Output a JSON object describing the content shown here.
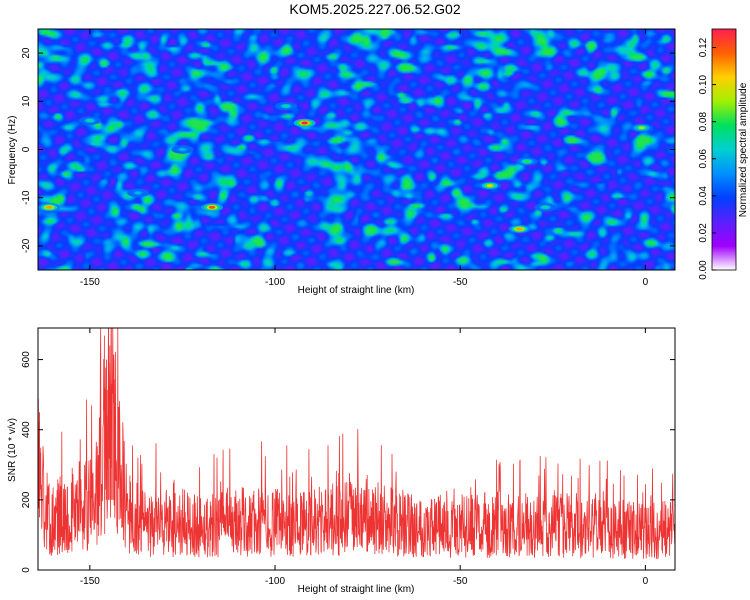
{
  "title": "KOM5.2025.227.06.52.G02",
  "chart_data": [
    {
      "type": "heatmap",
      "title": "KOM5.2025.227.06.52.G02",
      "xlabel": "Height of straight line (km)",
      "ylabel": "Frequency (Hz)",
      "xlim": [
        -164,
        8
      ],
      "ylim": [
        -25,
        25
      ],
      "xticks": [
        -150,
        -100,
        -50,
        0
      ],
      "yticks": [
        20,
        10,
        0,
        -10,
        -20
      ],
      "colorbar": {
        "label": "Normalized spectral amplitude",
        "range": [
          0,
          0.13
        ],
        "ticks": [
          "0.00",
          "0.02",
          "0.04",
          "0.06",
          "0.08",
          "0.10",
          "0.12"
        ],
        "colors": [
          "#ffffff",
          "#a000ff",
          "#5a20ff",
          "#0040ff",
          "#0090ff",
          "#00d0d0",
          "#00e060",
          "#a0f000",
          "#ffd000",
          "#ff6000",
          "#ff2050"
        ]
      },
      "hotspots": [
        {
          "x": -92,
          "y": 5.5,
          "value": 0.13
        },
        {
          "x": -117,
          "y": -12,
          "value": 0.12
        },
        {
          "x": -161,
          "y": -12,
          "value": 0.11
        },
        {
          "x": -34,
          "y": -16.5,
          "value": 0.11
        },
        {
          "x": -42,
          "y": -7.5,
          "value": 0.1
        },
        {
          "x": -1,
          "y": 4.5,
          "value": 0.09
        },
        {
          "x": -32,
          "y": -2.5,
          "value": 0.08
        },
        {
          "x": -97,
          "y": 9,
          "value": 0.07
        },
        {
          "x": -150,
          "y": 6,
          "value": 0.07
        },
        {
          "x": -27,
          "y": -12,
          "value": 0.07
        },
        {
          "x": -137,
          "y": -9,
          "value": 0.06
        },
        {
          "x": -125,
          "y": 0,
          "value": 0.06
        }
      ]
    },
    {
      "type": "line",
      "xlabel": "Height of straight line (km)",
      "ylabel": "SNR (10 * v/v)",
      "xlim": [
        -164,
        8
      ],
      "ylim": [
        0,
        690
      ],
      "xticks": [
        -150,
        -100,
        -50,
        0
      ],
      "yticks": [
        0,
        200,
        400,
        600
      ],
      "color": "#ee3333",
      "series": [
        {
          "name": "SNR",
          "x": [
            -164,
            -162,
            -160,
            -158,
            -155,
            -152,
            -150,
            -148,
            -146,
            -145,
            -144,
            -143,
            -142,
            -140,
            -138,
            -135,
            -130,
            -125,
            -120,
            -110,
            -100,
            -90,
            -80,
            -75,
            -70,
            -60,
            -50,
            -40,
            -30,
            -25,
            -20,
            -10,
            0,
            8
          ],
          "values": [
            370,
            180,
            150,
            175,
            190,
            210,
            200,
            260,
            330,
            480,
            560,
            470,
            330,
            190,
            150,
            140,
            150,
            145,
            140,
            150,
            145,
            150,
            160,
            165,
            150,
            140,
            135,
            140,
            130,
            145,
            135,
            125,
            120,
            130
          ]
        }
      ]
    }
  ]
}
